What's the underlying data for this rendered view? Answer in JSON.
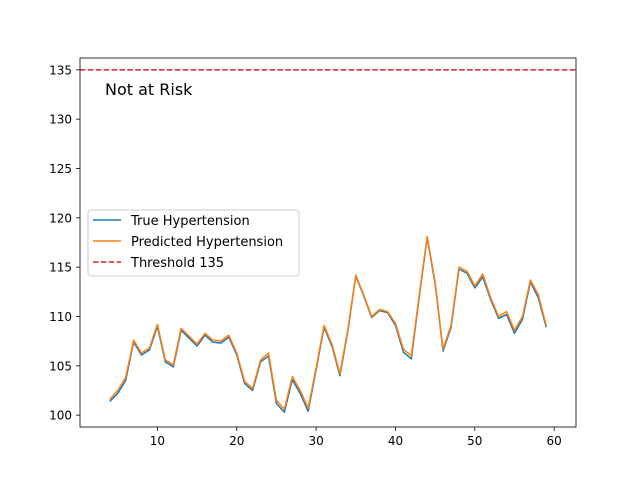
{
  "chart_data": {
    "type": "line",
    "title": "",
    "xlabel": "",
    "ylabel": "",
    "xlim": [
      0.25,
      62.75
    ],
    "ylim": [
      98.8,
      136.2
    ],
    "x_ticks": [
      10,
      20,
      30,
      40,
      50,
      60
    ],
    "y_ticks": [
      100,
      105,
      110,
      115,
      120,
      125,
      130,
      135
    ],
    "grid": false,
    "legend_position": "center-left",
    "annotation": "Not at Risk",
    "threshold": {
      "name": "Threshold 135",
      "value": 135,
      "color": "#d62728",
      "style": "dashed"
    },
    "x": [
      4,
      5,
      6,
      7,
      8,
      9,
      10,
      11,
      12,
      13,
      14,
      15,
      16,
      17,
      18,
      19,
      20,
      21,
      22,
      23,
      24,
      25,
      26,
      27,
      28,
      29,
      30,
      31,
      32,
      33,
      34,
      35,
      36,
      37,
      38,
      39,
      40,
      41,
      42,
      43,
      44,
      45,
      46,
      47,
      48,
      49,
      50,
      51,
      52,
      53,
      54,
      55,
      56,
      57,
      58,
      59
    ],
    "series": [
      {
        "name": "True Hypertension",
        "color": "#1f77b4",
        "values": [
          101.4,
          102.2,
          103.5,
          107.4,
          106.1,
          106.6,
          109.0,
          105.4,
          104.9,
          108.6,
          107.8,
          107.0,
          108.1,
          107.4,
          107.3,
          107.9,
          106.1,
          103.2,
          102.5,
          105.4,
          106.0,
          101.2,
          100.3,
          103.6,
          102.2,
          100.4,
          104.6,
          108.9,
          107.0,
          104.0,
          108.5,
          114.1,
          112.1,
          109.9,
          110.6,
          110.4,
          109.1,
          106.4,
          105.7,
          112.0,
          118.0,
          113.3,
          106.5,
          108.9,
          114.8,
          114.4,
          112.9,
          114.0,
          111.7,
          109.8,
          110.2,
          108.3,
          109.7,
          113.5,
          111.9,
          108.9
        ]
      },
      {
        "name": "Predicted Hypertension",
        "color": "#ff7f0e",
        "values": [
          101.6,
          102.5,
          103.8,
          107.6,
          106.3,
          106.8,
          109.2,
          105.6,
          105.1,
          108.8,
          108.0,
          107.2,
          108.3,
          107.6,
          107.5,
          108.1,
          106.3,
          103.4,
          102.7,
          105.6,
          106.3,
          101.5,
          100.6,
          103.9,
          102.5,
          100.7,
          104.8,
          109.1,
          107.2,
          104.2,
          108.7,
          114.2,
          112.2,
          110.0,
          110.7,
          110.5,
          109.3,
          106.7,
          106.0,
          112.2,
          118.1,
          113.5,
          106.7,
          109.1,
          115.0,
          114.6,
          113.1,
          114.3,
          111.9,
          110.0,
          110.5,
          108.6,
          110.0,
          113.7,
          112.2,
          109.1
        ]
      }
    ]
  }
}
